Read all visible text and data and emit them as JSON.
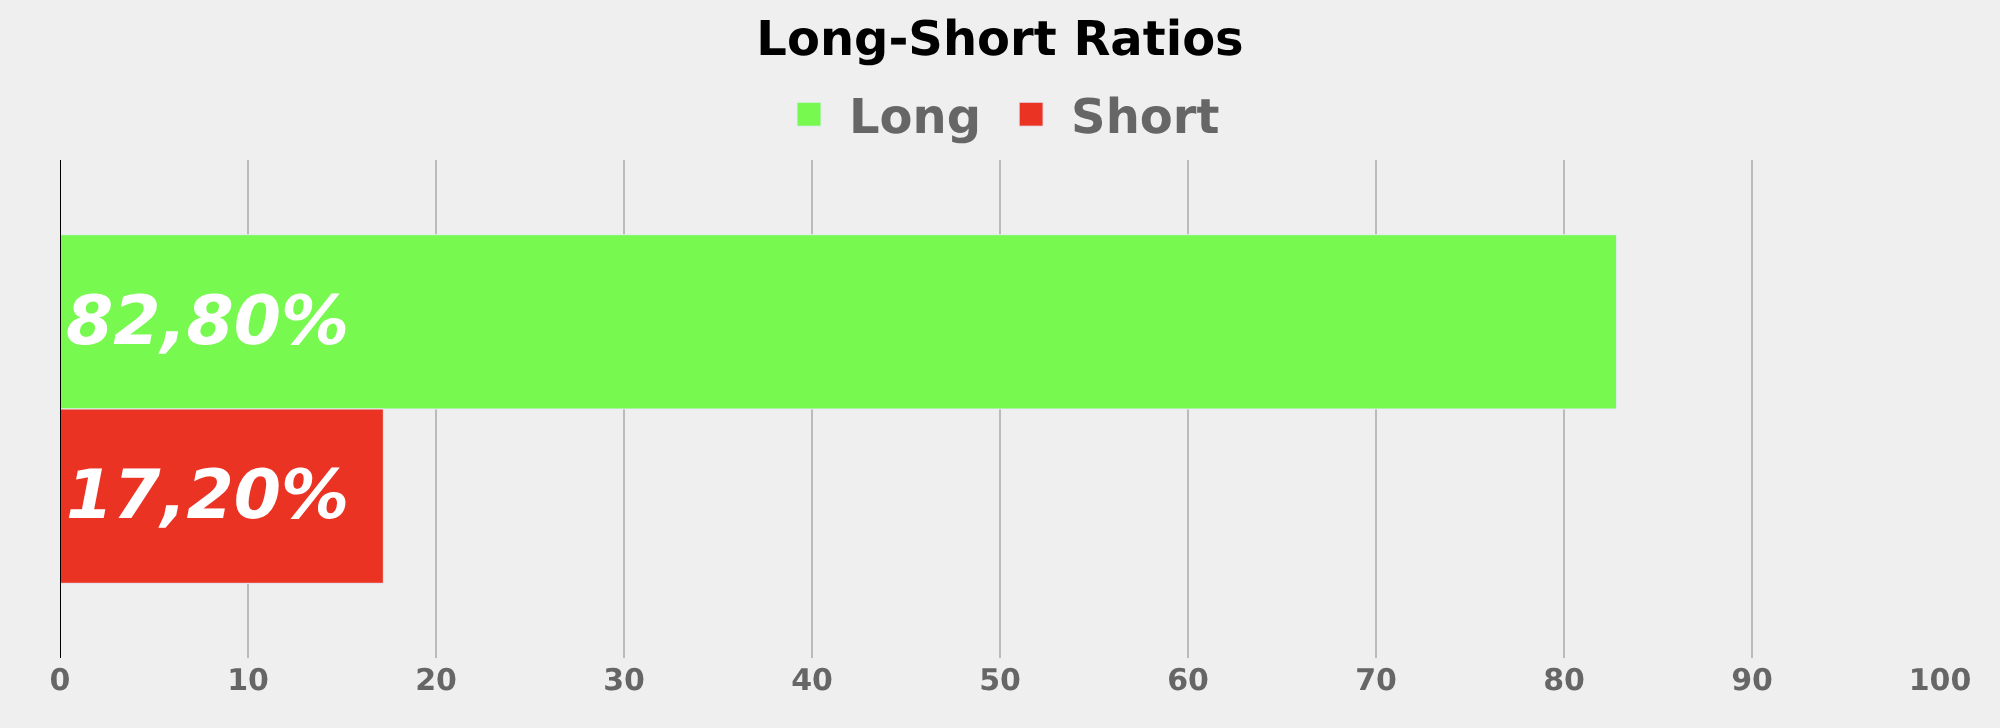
{
  "chart_data": {
    "type": "bar",
    "title": "Long-Short Ratios",
    "orientation": "horizontal",
    "categories": [
      null
    ],
    "series": [
      {
        "name": "Long",
        "color": "#77f94f",
        "values": [
          82.8
        ],
        "value_labels": [
          "82,80%"
        ]
      },
      {
        "name": "Short",
        "color": "#eb3324",
        "values": [
          17.2
        ],
        "value_labels": [
          "17,20%"
        ]
      }
    ],
    "xlim": [
      0,
      100
    ],
    "xticks": [
      0,
      10,
      20,
      30,
      40,
      50,
      60,
      70,
      80,
      90,
      100
    ],
    "grid": "x",
    "legend": "top"
  }
}
